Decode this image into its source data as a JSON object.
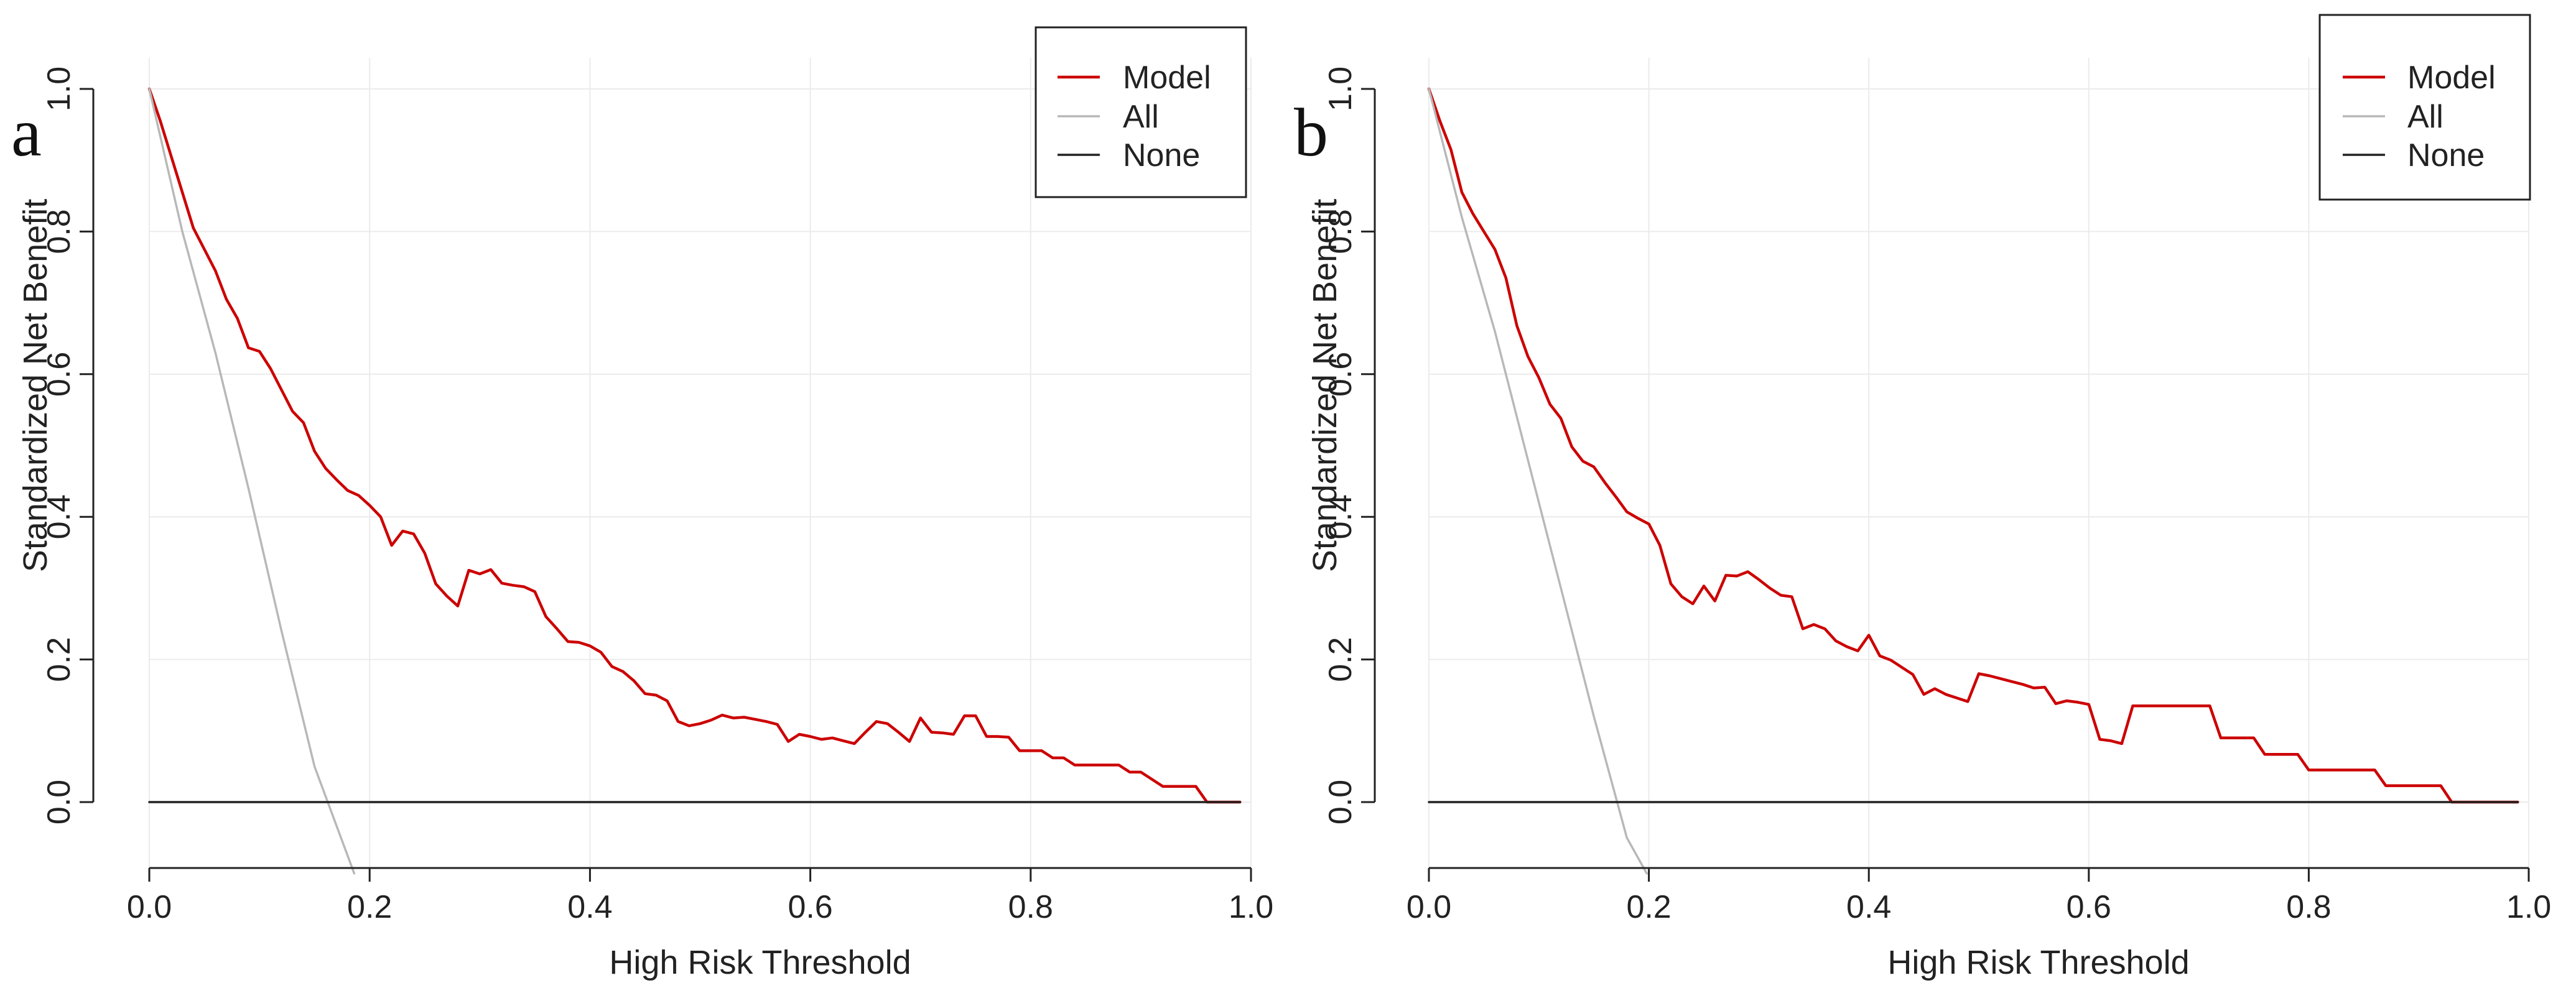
{
  "chart_data": [
    {
      "type": "line",
      "panel_label": "a",
      "xlabel": "High Risk Threshold",
      "ylabel": "Standardized Net Benefit",
      "xlim": [
        0,
        1
      ],
      "ylim": [
        -0.1,
        1
      ],
      "xticks": [
        0,
        0.2,
        0.4,
        0.6,
        0.8,
        1
      ],
      "xtick_labels": [
        "0.0",
        "0.2",
        "0.4",
        "0.6",
        "0.8",
        "1.0"
      ],
      "yticks": [
        0,
        0.2,
        0.4,
        0.6,
        0.8,
        1
      ],
      "ytick_labels": [
        "0.0",
        "0.2",
        "0.4",
        "0.6",
        "0.8",
        "1.0"
      ],
      "grid": true,
      "legend_position": "top-right",
      "series": [
        {
          "name": "Model",
          "color": "#cc0000",
          "x": [
            0,
            0.01,
            0.02,
            0.03,
            0.04,
            0.05,
            0.06,
            0.07,
            0.08,
            0.09,
            0.1,
            0.11,
            0.12,
            0.13,
            0.14,
            0.15,
            0.16,
            0.17,
            0.18,
            0.19,
            0.2,
            0.21,
            0.22,
            0.23,
            0.24,
            0.25,
            0.26,
            0.27,
            0.28,
            0.29,
            0.3,
            0.31,
            0.32,
            0.33,
            0.34,
            0.35,
            0.36,
            0.37,
            0.38,
            0.39,
            0.4,
            0.41,
            0.42,
            0.43,
            0.44,
            0.45,
            0.46,
            0.47,
            0.48,
            0.49,
            0.5,
            0.51,
            0.52,
            0.53,
            0.54,
            0.55,
            0.56,
            0.57,
            0.58,
            0.59,
            0.6,
            0.61,
            0.62,
            0.63,
            0.64,
            0.65,
            0.66,
            0.67,
            0.68,
            0.69,
            0.7,
            0.71,
            0.72,
            0.73,
            0.74,
            0.75,
            0.76,
            0.77,
            0.78,
            0.79,
            0.8,
            0.81,
            0.82,
            0.83,
            0.84,
            0.85,
            0.86,
            0.87,
            0.88,
            0.89,
            0.9,
            0.91,
            0.92,
            0.93,
            0.94,
            0.95,
            0.96,
            0.97,
            0.98,
            0.99
          ],
          "y": [
            1.0,
            0.955,
            0.905,
            0.855,
            0.805,
            0.775,
            0.745,
            0.705,
            0.678,
            0.637,
            0.632,
            0.608,
            0.578,
            0.548,
            0.532,
            0.492,
            0.468,
            0.452,
            0.437,
            0.43,
            0.416,
            0.4,
            0.36,
            0.38,
            0.376,
            0.349,
            0.306,
            0.289,
            0.275,
            0.325,
            0.32,
            0.326,
            0.307,
            0.304,
            0.302,
            0.295,
            0.26,
            0.243,
            0.225,
            0.224,
            0.219,
            0.21,
            0.19,
            0.183,
            0.17,
            0.152,
            0.15,
            0.142,
            0.113,
            0.107,
            0.11,
            0.115,
            0.122,
            0.118,
            0.119,
            0.116,
            0.113,
            0.109,
            0.085,
            0.095,
            0.092,
            0.088,
            0.09,
            0.086,
            0.082,
            0.098,
            0.113,
            0.11,
            0.098,
            0.085,
            0.118,
            0.098,
            0.097,
            0.095,
            0.121,
            0.121,
            0.092,
            0.092,
            0.091,
            0.072,
            0.072,
            0.072,
            0.062,
            0.062,
            0.052,
            0.052,
            0.052,
            0.052,
            0.052,
            0.042,
            0.042,
            0.032,
            0.022,
            0.022,
            0.022,
            0.022,
            0.0,
            0.0,
            0.0,
            0.0
          ]
        },
        {
          "name": "All",
          "color": "#b8b8b8",
          "x": [
            0,
            0.03,
            0.06,
            0.09,
            0.12,
            0.15,
            0.186
          ],
          "y": [
            1.0,
            0.8,
            0.63,
            0.44,
            0.24,
            0.05,
            -0.1
          ]
        },
        {
          "name": "None",
          "color": "#222222",
          "x": [
            0,
            0.99
          ],
          "y": [
            0,
            0
          ]
        }
      ]
    },
    {
      "type": "line",
      "panel_label": "b",
      "xlabel": "High Risk Threshold",
      "ylabel": "Standardized Net Benefit",
      "xlim": [
        0,
        1
      ],
      "ylim": [
        -0.1,
        1
      ],
      "xticks": [
        0,
        0.2,
        0.4,
        0.6,
        0.8,
        1
      ],
      "xtick_labels": [
        "0.0",
        "0.2",
        "0.4",
        "0.6",
        "0.8",
        "1.0"
      ],
      "yticks": [
        0,
        0.2,
        0.4,
        0.6,
        0.8,
        1
      ],
      "ytick_labels": [
        "0.0",
        "0.2",
        "0.4",
        "0.6",
        "0.8",
        "1.0"
      ],
      "grid": true,
      "legend_position": "top-right",
      "series": [
        {
          "name": "Model",
          "color": "#cc0000",
          "x": [
            0,
            0.01,
            0.02,
            0.03,
            0.04,
            0.05,
            0.06,
            0.07,
            0.08,
            0.09,
            0.1,
            0.11,
            0.12,
            0.13,
            0.14,
            0.15,
            0.16,
            0.17,
            0.18,
            0.19,
            0.2,
            0.21,
            0.22,
            0.23,
            0.24,
            0.25,
            0.26,
            0.27,
            0.28,
            0.29,
            0.3,
            0.31,
            0.32,
            0.33,
            0.34,
            0.35,
            0.36,
            0.37,
            0.38,
            0.39,
            0.4,
            0.41,
            0.42,
            0.43,
            0.44,
            0.45,
            0.46,
            0.47,
            0.48,
            0.49,
            0.5,
            0.51,
            0.52,
            0.53,
            0.54,
            0.55,
            0.56,
            0.57,
            0.58,
            0.59,
            0.6,
            0.61,
            0.62,
            0.63,
            0.64,
            0.65,
            0.66,
            0.67,
            0.68,
            0.69,
            0.7,
            0.71,
            0.72,
            0.73,
            0.74,
            0.75,
            0.76,
            0.77,
            0.78,
            0.79,
            0.8,
            0.81,
            0.82,
            0.83,
            0.84,
            0.85,
            0.86,
            0.87,
            0.88,
            0.89,
            0.9,
            0.91,
            0.92,
            0.93,
            0.94,
            0.95,
            0.96,
            0.97,
            0.98,
            0.99
          ],
          "y": [
            1.0,
            0.955,
            0.915,
            0.855,
            0.825,
            0.8,
            0.775,
            0.735,
            0.668,
            0.625,
            0.595,
            0.558,
            0.538,
            0.498,
            0.478,
            0.47,
            0.448,
            0.428,
            0.407,
            0.398,
            0.39,
            0.36,
            0.306,
            0.288,
            0.278,
            0.303,
            0.282,
            0.318,
            0.317,
            0.323,
            0.312,
            0.3,
            0.29,
            0.288,
            0.243,
            0.249,
            0.243,
            0.226,
            0.218,
            0.212,
            0.234,
            0.205,
            0.199,
            0.189,
            0.179,
            0.151,
            0.159,
            0.151,
            0.146,
            0.141,
            0.18,
            0.177,
            0.173,
            0.169,
            0.165,
            0.16,
            0.161,
            0.138,
            0.142,
            0.14,
            0.137,
            0.088,
            0.086,
            0.082,
            0.135,
            0.135,
            0.135,
            0.135,
            0.135,
            0.135,
            0.135,
            0.135,
            0.09,
            0.09,
            0.09,
            0.09,
            0.067,
            0.067,
            0.067,
            0.067,
            0.045,
            0.045,
            0.045,
            0.045,
            0.045,
            0.045,
            0.045,
            0.023,
            0.023,
            0.023,
            0.023,
            0.023,
            0.023,
            0.0,
            0.0,
            0.0,
            0.0,
            0.0,
            0.0,
            0.0
          ]
        },
        {
          "name": "All",
          "color": "#b8b8b8",
          "x": [
            0,
            0.03,
            0.06,
            0.09,
            0.12,
            0.15,
            0.18,
            0.198
          ],
          "y": [
            1.0,
            0.82,
            0.66,
            0.48,
            0.3,
            0.12,
            -0.05,
            -0.1
          ]
        },
        {
          "name": "None",
          "color": "#222222",
          "x": [
            0,
            0.99
          ],
          "y": [
            0,
            0
          ]
        }
      ]
    }
  ]
}
